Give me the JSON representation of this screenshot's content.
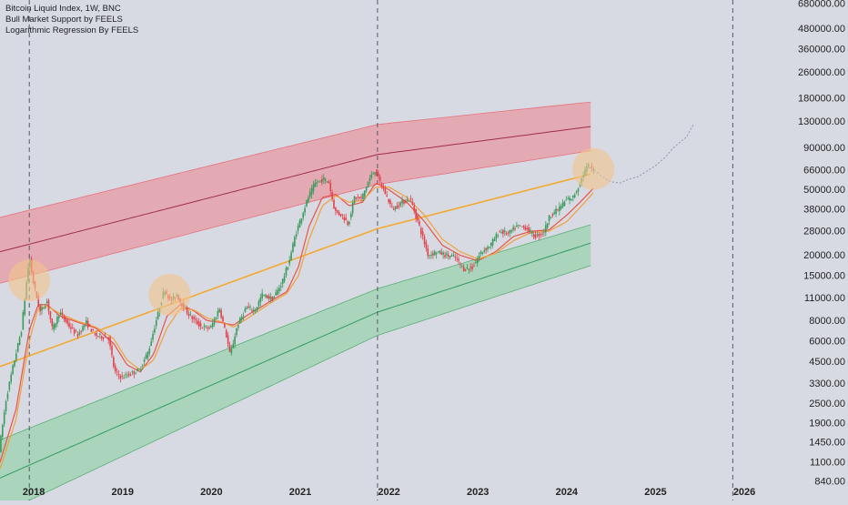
{
  "legend": {
    "symbol_line": "Bitcoin Liquid Index, 1W, BNC",
    "indicator_1": "Bull Market Support by FEELS",
    "indicator_2": "Logarithmic Regression By FEELS"
  },
  "colors": {
    "background": "#d7dae3",
    "up_candle": "#3a9a5c",
    "down_candle": "#e2424a",
    "top_band_fill": "#e79aa4",
    "top_band_edge": "#e5737e",
    "top_band_mid": "#9e2d4a",
    "bottom_band_fill": "#9fd2b1",
    "bottom_band_edge": "#57b074",
    "bottom_band_mid": "#2f9a64",
    "fair_value_line": "#f5a623",
    "sma_line": "#e8534b",
    "ema_line": "#f0a03c",
    "highlight_circle": "#f2c58a",
    "cycle_divider": "#555a66",
    "axis_text": "#222222"
  },
  "chart_data": {
    "type": "candlestick",
    "y_scale": "log",
    "ylim": [
      840,
      680000
    ],
    "xlim": [
      2017.62,
      2026.45
    ],
    "y_ticks": [
      "680000.00",
      "480000.00",
      "360000.00",
      "260000.00",
      "180000.00",
      "130000.00",
      "90000.00",
      "66000.00",
      "50000.00",
      "38000.00",
      "28000.00",
      "20000.00",
      "15000.00",
      "11000.00",
      "8000.00",
      "6000.00",
      "4500.00",
      "3300.00",
      "2500.00",
      "1900.00",
      "1450.00",
      "1100.00",
      "840.00"
    ],
    "x_ticks": [
      {
        "label": "2018",
        "t": 2018.0
      },
      {
        "label": "2019",
        "t": 2019.0
      },
      {
        "label": "2020",
        "t": 2020.0
      },
      {
        "label": "2021",
        "t": 2021.0
      },
      {
        "label": "2022",
        "t": 2022.0
      },
      {
        "label": "2023",
        "t": 2023.0
      },
      {
        "label": "2024",
        "t": 2024.0
      },
      {
        "label": "2025",
        "t": 2025.0
      },
      {
        "label": "2026",
        "t": 2026.0
      }
    ],
    "cycle_dividers": [
      2017.95,
      2021.87,
      2025.87
    ],
    "price_path": [
      [
        2017.62,
        1300
      ],
      [
        2017.7,
        2700
      ],
      [
        2017.78,
        4300
      ],
      [
        2017.87,
        7000
      ],
      [
        2017.93,
        14000
      ],
      [
        2017.96,
        19500
      ],
      [
        2018.0,
        14000
      ],
      [
        2018.08,
        9000
      ],
      [
        2018.16,
        10500
      ],
      [
        2018.22,
        7000
      ],
      [
        2018.3,
        9000
      ],
      [
        2018.4,
        7500
      ],
      [
        2018.5,
        6500
      ],
      [
        2018.6,
        7800
      ],
      [
        2018.7,
        6500
      ],
      [
        2018.85,
        6300
      ],
      [
        2018.92,
        3900
      ],
      [
        2019.0,
        3600
      ],
      [
        2019.1,
        3800
      ],
      [
        2019.2,
        4000
      ],
      [
        2019.3,
        5200
      ],
      [
        2019.4,
        8500
      ],
      [
        2019.48,
        12500
      ],
      [
        2019.55,
        10500
      ],
      [
        2019.62,
        11500
      ],
      [
        2019.7,
        9500
      ],
      [
        2019.8,
        8200
      ],
      [
        2019.9,
        7300
      ],
      [
        2020.0,
        7200
      ],
      [
        2020.1,
        9500
      ],
      [
        2020.18,
        6400
      ],
      [
        2020.22,
        4900
      ],
      [
        2020.3,
        7400
      ],
      [
        2020.4,
        9600
      ],
      [
        2020.5,
        9200
      ],
      [
        2020.58,
        11500
      ],
      [
        2020.7,
        10800
      ],
      [
        2020.8,
        13500
      ],
      [
        2020.88,
        18000
      ],
      [
        2020.95,
        26000
      ],
      [
        2021.02,
        34000
      ],
      [
        2021.1,
        45000
      ],
      [
        2021.18,
        55000
      ],
      [
        2021.27,
        58000
      ],
      [
        2021.33,
        56000
      ],
      [
        2021.4,
        37000
      ],
      [
        2021.48,
        35000
      ],
      [
        2021.55,
        31000
      ],
      [
        2021.62,
        45000
      ],
      [
        2021.7,
        44000
      ],
      [
        2021.78,
        57000
      ],
      [
        2021.85,
        66000
      ],
      [
        2021.9,
        57000
      ],
      [
        2021.97,
        47000
      ],
      [
        2022.05,
        38000
      ],
      [
        2022.15,
        42000
      ],
      [
        2022.25,
        44000
      ],
      [
        2022.35,
        30000
      ],
      [
        2022.45,
        20000
      ],
      [
        2022.55,
        21000
      ],
      [
        2022.65,
        20000
      ],
      [
        2022.75,
        19500
      ],
      [
        2022.85,
        16500
      ],
      [
        2022.95,
        16800
      ],
      [
        2023.05,
        21000
      ],
      [
        2023.15,
        23000
      ],
      [
        2023.25,
        28000
      ],
      [
        2023.35,
        27000
      ],
      [
        2023.45,
        30000
      ],
      [
        2023.55,
        29500
      ],
      [
        2023.65,
        26000
      ],
      [
        2023.75,
        27500
      ],
      [
        2023.82,
        35000
      ],
      [
        2023.9,
        37500
      ],
      [
        2024.0,
        43000
      ],
      [
        2024.08,
        45000
      ],
      [
        2024.14,
        52000
      ],
      [
        2024.2,
        63000
      ],
      [
        2024.25,
        70000
      ],
      [
        2024.3,
        66000
      ]
    ],
    "projection_path": [
      [
        2024.31,
        66000
      ],
      [
        2024.4,
        60000
      ],
      [
        2024.5,
        56000
      ],
      [
        2024.6,
        55000
      ],
      [
        2024.7,
        58000
      ],
      [
        2024.8,
        60000
      ],
      [
        2024.9,
        65000
      ],
      [
        2025.0,
        70000
      ],
      [
        2025.1,
        78000
      ],
      [
        2025.2,
        90000
      ],
      [
        2025.28,
        98000
      ],
      [
        2025.35,
        105000
      ],
      [
        2025.4,
        118000
      ],
      [
        2025.43,
        125000
      ]
    ],
    "regression_bands": {
      "top_upper": [
        [
          2017.62,
          34000
        ],
        [
          2021.87,
          125000
        ],
        [
          2024.3,
          172000
        ]
      ],
      "top_mid": [
        [
          2017.62,
          21000
        ],
        [
          2021.87,
          82000
        ],
        [
          2024.3,
          122000
        ]
      ],
      "top_lower": [
        [
          2017.62,
          13500
        ],
        [
          2021.87,
          54000
        ],
        [
          2024.3,
          87000
        ]
      ],
      "fair_value": [
        [
          2017.62,
          4200
        ],
        [
          2021.87,
          29000
        ],
        [
          2024.3,
          63000
        ]
      ],
      "bottom_upper": [
        [
          2017.62,
          1500
        ],
        [
          2021.87,
          12500
        ],
        [
          2024.3,
          31000
        ]
      ],
      "bottom_mid": [
        [
          2017.62,
          880
        ],
        [
          2021.87,
          9000
        ],
        [
          2024.3,
          24000
        ]
      ],
      "bottom_lower": [
        [
          2017.62,
          530
        ],
        [
          2021.87,
          6500
        ],
        [
          2024.3,
          17500
        ]
      ]
    },
    "bull_market_support_sma": [
      [
        2017.62,
        1100
      ],
      [
        2017.8,
        2300
      ],
      [
        2017.95,
        7000
      ],
      [
        2018.05,
        10000
      ],
      [
        2018.15,
        10000
      ],
      [
        2018.3,
        8500
      ],
      [
        2018.5,
        7800
      ],
      [
        2018.7,
        7200
      ],
      [
        2018.9,
        5800
      ],
      [
        2019.05,
        4300
      ],
      [
        2019.2,
        3900
      ],
      [
        2019.35,
        5000
      ],
      [
        2019.5,
        8500
      ],
      [
        2019.65,
        10000
      ],
      [
        2019.8,
        9200
      ],
      [
        2019.95,
        8000
      ],
      [
        2020.1,
        7800
      ],
      [
        2020.25,
        7500
      ],
      [
        2020.4,
        8600
      ],
      [
        2020.55,
        9600
      ],
      [
        2020.7,
        10800
      ],
      [
        2020.85,
        12000
      ],
      [
        2020.98,
        17000
      ],
      [
        2021.1,
        30000
      ],
      [
        2021.25,
        45000
      ],
      [
        2021.4,
        47000
      ],
      [
        2021.55,
        40000
      ],
      [
        2021.7,
        42000
      ],
      [
        2021.85,
        55000
      ],
      [
        2022.0,
        50000
      ],
      [
        2022.2,
        42000
      ],
      [
        2022.4,
        32000
      ],
      [
        2022.6,
        23000
      ],
      [
        2022.8,
        20000
      ],
      [
        2023.0,
        18500
      ],
      [
        2023.2,
        21000
      ],
      [
        2023.4,
        26000
      ],
      [
        2023.6,
        28000
      ],
      [
        2023.8,
        28500
      ],
      [
        2024.0,
        35000
      ],
      [
        2024.15,
        42000
      ],
      [
        2024.3,
        51000
      ]
    ],
    "bull_market_support_ema": [
      [
        2017.62,
        1000
      ],
      [
        2017.8,
        2000
      ],
      [
        2017.95,
        6000
      ],
      [
        2018.05,
        9500
      ],
      [
        2018.15,
        9800
      ],
      [
        2018.3,
        8800
      ],
      [
        2018.5,
        7900
      ],
      [
        2018.7,
        7300
      ],
      [
        2018.9,
        6200
      ],
      [
        2019.05,
        4600
      ],
      [
        2019.2,
        4000
      ],
      [
        2019.35,
        4600
      ],
      [
        2019.5,
        7200
      ],
      [
        2019.65,
        9500
      ],
      [
        2019.8,
        9300
      ],
      [
        2019.95,
        8300
      ],
      [
        2020.1,
        7900
      ],
      [
        2020.25,
        7300
      ],
      [
        2020.4,
        8200
      ],
      [
        2020.55,
        9300
      ],
      [
        2020.7,
        10500
      ],
      [
        2020.85,
        11700
      ],
      [
        2020.98,
        15000
      ],
      [
        2021.1,
        25000
      ],
      [
        2021.25,
        40000
      ],
      [
        2021.4,
        46000
      ],
      [
        2021.55,
        42000
      ],
      [
        2021.7,
        43000
      ],
      [
        2021.85,
        52000
      ],
      [
        2022.0,
        52000
      ],
      [
        2022.2,
        45000
      ],
      [
        2022.4,
        35000
      ],
      [
        2022.6,
        25000
      ],
      [
        2022.8,
        21000
      ],
      [
        2023.0,
        19000
      ],
      [
        2023.2,
        20500
      ],
      [
        2023.4,
        24500
      ],
      [
        2023.6,
        27500
      ],
      [
        2023.8,
        28000
      ],
      [
        2024.0,
        32000
      ],
      [
        2024.15,
        39000
      ],
      [
        2024.3,
        48000
      ]
    ],
    "highlight_circles": [
      {
        "t": 2017.95,
        "price": 14000
      },
      {
        "t": 2019.53,
        "price": 11500
      },
      {
        "t": 2024.3,
        "price": 67000
      }
    ]
  }
}
